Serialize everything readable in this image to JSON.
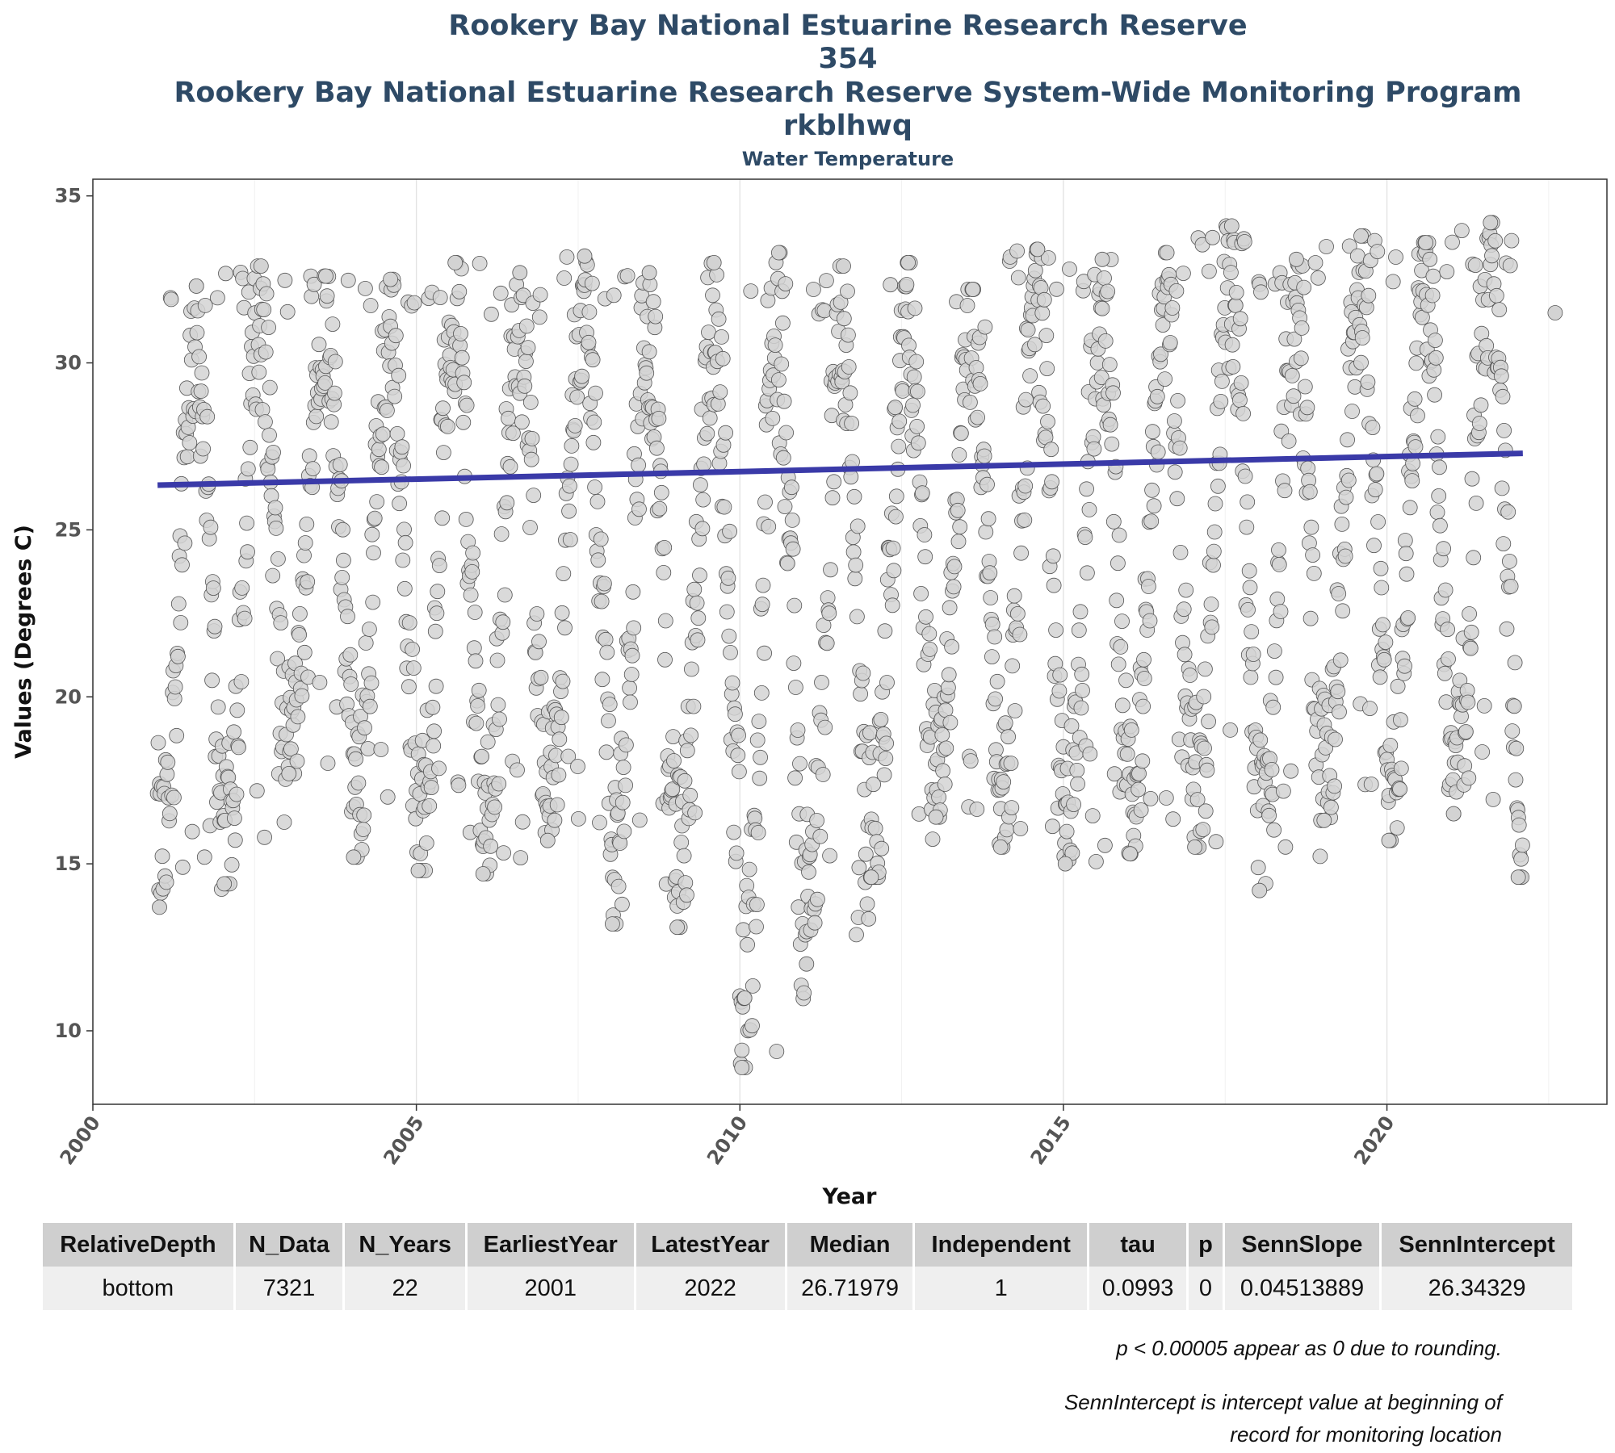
{
  "titles": {
    "line1": "Rookery Bay National Estuarine Research Reserve",
    "line2": "354",
    "line3": "Rookery Bay National Estuarine Research Reserve System-Wide Monitoring Program",
    "line4": "rkblhwq",
    "line5": "Water Temperature"
  },
  "chart_data": {
    "type": "scatter",
    "xlabel": "Year",
    "ylabel": "Values (Degrees C)",
    "xlim": [
      2000,
      2023.4
    ],
    "ylim": [
      7.8,
      35.5
    ],
    "x_ticks": [
      2000,
      2005,
      2010,
      2015,
      2020
    ],
    "y_ticks": [
      10,
      15,
      20,
      25,
      30,
      35
    ],
    "grid": true,
    "point_color": "#d3d3d3",
    "point_edge_color": "#555555",
    "trend_color": "#3a3aa8",
    "trend_line": {
      "x": [
        2001.0,
        2022.1
      ],
      "y": [
        26.34,
        27.29
      ]
    },
    "seasonal_ranges": [
      {
        "year": 2001,
        "min": 13.7,
        "max": 32.3
      },
      {
        "year": 2002,
        "min": 14.4,
        "max": 32.9
      },
      {
        "year": 2003,
        "min": 17.7,
        "max": 32.6
      },
      {
        "year": 2004,
        "min": 15.2,
        "max": 32.5
      },
      {
        "year": 2005,
        "min": 14.8,
        "max": 33.0
      },
      {
        "year": 2006,
        "min": 14.7,
        "max": 32.7
      },
      {
        "year": 2007,
        "min": 15.7,
        "max": 33.2
      },
      {
        "year": 2008,
        "min": 13.2,
        "max": 32.7
      },
      {
        "year": 2009,
        "min": 13.1,
        "max": 33.0
      },
      {
        "year": 2010,
        "min": 8.9,
        "max": 33.3
      },
      {
        "year": 2011,
        "min": 12.0,
        "max": 32.9
      },
      {
        "year": 2012,
        "min": 14.6,
        "max": 33.0
      },
      {
        "year": 2013,
        "min": 16.4,
        "max": 32.2
      },
      {
        "year": 2014,
        "min": 15.5,
        "max": 33.4
      },
      {
        "year": 2015,
        "min": 15.0,
        "max": 33.1
      },
      {
        "year": 2016,
        "min": 15.3,
        "max": 33.3
      },
      {
        "year": 2017,
        "min": 15.5,
        "max": 34.1
      },
      {
        "year": 2018,
        "min": 14.2,
        "max": 33.1
      },
      {
        "year": 2019,
        "min": 16.3,
        "max": 33.8
      },
      {
        "year": 2020,
        "min": 15.7,
        "max": 33.6
      },
      {
        "year": 2021,
        "min": 16.5,
        "max": 34.2
      },
      {
        "year": 2022,
        "min": 14.6,
        "max": 31.5
      }
    ]
  },
  "table": {
    "headers": [
      "RelativeDepth",
      "N_Data",
      "N_Years",
      "EarliestYear",
      "LatestYear",
      "Median",
      "Independent",
      "tau",
      "p",
      "SennSlope",
      "SennIntercept"
    ],
    "rows": [
      [
        "bottom",
        "7321",
        "22",
        "2001",
        "2022",
        "26.71979",
        "1",
        "0.0993",
        "0",
        "0.04513889",
        "26.34329"
      ]
    ]
  },
  "notes": {
    "p_note": "p < 0.00005 appear as 0 due to rounding.",
    "intercept_note_line1": "SennIntercept is intercept value at beginning of",
    "intercept_note_line2": "record for monitoring location"
  }
}
